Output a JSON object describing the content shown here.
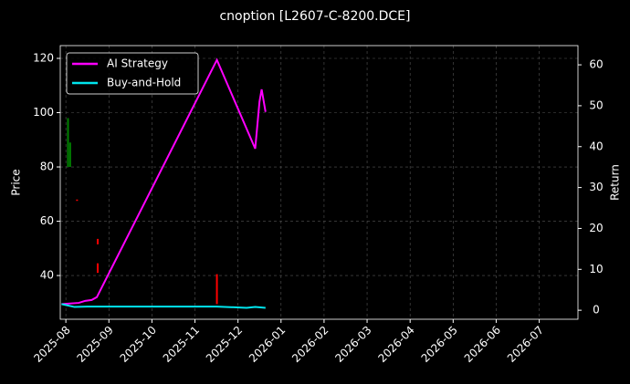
{
  "chart_data": {
    "type": "line",
    "title": "cnoption [L2607-C-8200.DCE]",
    "ylabel": "Price",
    "y2label": "Return",
    "xlim": [
      -0.13,
      11.9
    ],
    "xticks": [
      {
        "value": 0,
        "label": "2025-08"
      },
      {
        "value": 1,
        "label": "2025-09"
      },
      {
        "value": 2,
        "label": "2025-10"
      },
      {
        "value": 3,
        "label": "2025-11"
      },
      {
        "value": 4,
        "label": "2025-12"
      },
      {
        "value": 5,
        "label": "2026-01"
      },
      {
        "value": 6,
        "label": "2026-02"
      },
      {
        "value": 7,
        "label": "2026-03"
      },
      {
        "value": 8,
        "label": "2026-04"
      },
      {
        "value": 9,
        "label": "2026-05"
      },
      {
        "value": 10,
        "label": "2026-06"
      },
      {
        "value": 11,
        "label": "2026-07"
      }
    ],
    "ylim": [
      23.9,
      124.7
    ],
    "yticks": [
      40,
      60,
      80,
      100,
      120
    ],
    "y2lim": [
      -2.2,
      64.7
    ],
    "y2ticks": [
      0,
      10,
      20,
      30,
      40,
      50,
      60
    ],
    "grid": true,
    "legend": "upper left",
    "series": [
      {
        "name": "AI Strategy",
        "color": "#ff00ff",
        "axis": "y2",
        "x": [
          -0.1,
          0.3,
          0.45,
          0.6,
          0.72,
          3.51,
          4.4,
          4.5,
          4.55,
          4.64
        ],
        "values": [
          1.5,
          1.8,
          2.3,
          2.5,
          3.2,
          61.2,
          39.5,
          51,
          54,
          48.5
        ]
      },
      {
        "name": "Buy-and-Hold",
        "color": "#00e5ee",
        "axis": "y2",
        "x": [
          -0.1,
          0.2,
          0.5,
          0.8,
          2,
          3.5,
          4.2,
          4.4,
          4.64
        ],
        "values": [
          1.5,
          0.8,
          0.9,
          0.9,
          0.9,
          0.9,
          0.6,
          0.8,
          0.6
        ]
      }
    ],
    "candles": {
      "up_color": "#008000",
      "down_color": "#ff0000",
      "x": [
        0.05,
        0.1,
        0.26,
        0.74,
        0.74,
        3.51
      ],
      "open": [
        80,
        80,
        68,
        53.5,
        44.5,
        40.5
      ],
      "close": [
        98,
        89,
        67.5,
        51.5,
        41,
        29.5
      ]
    }
  }
}
